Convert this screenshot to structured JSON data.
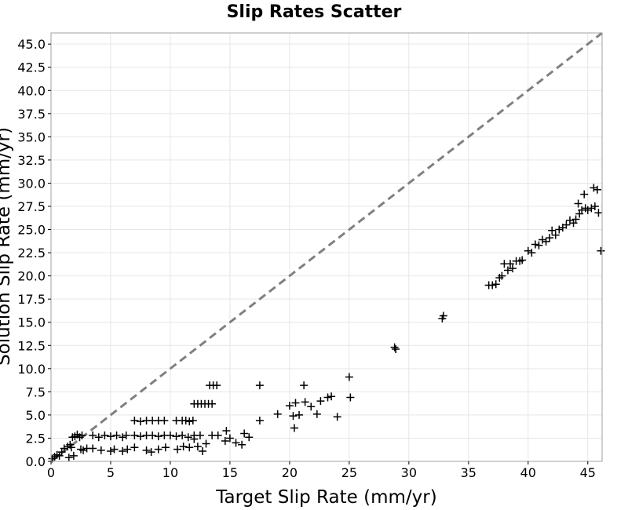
{
  "chart_data": {
    "type": "scatter",
    "title": "Slip Rates Scatter",
    "xlabel": "Target Slip Rate (mm/yr)",
    "ylabel": "Solution Slip Rate (mm/yr)",
    "xlim": [
      0,
      46.2
    ],
    "ylim": [
      0,
      46.2
    ],
    "x_ticks": [
      0,
      5,
      10,
      15,
      20,
      25,
      30,
      35,
      40,
      45
    ],
    "y_ticks": [
      0.0,
      2.5,
      5.0,
      7.5,
      10.0,
      12.5,
      15.0,
      17.5,
      20.0,
      22.5,
      25.0,
      27.5,
      30.0,
      32.5,
      35.0,
      37.5,
      40.0,
      42.5,
      45.0
    ],
    "marker": "plus",
    "grid": true,
    "reference_line": "y = x",
    "colors": {
      "points": "#000000",
      "reference_line": "#808080",
      "grid": "#e6e6e6"
    },
    "series": [
      {
        "points": [
          [
            0.1,
            0.3
          ],
          [
            0.3,
            0.5
          ],
          [
            0.5,
            0.7
          ],
          [
            0.7,
            0.6
          ],
          [
            0.9,
            1.0
          ],
          [
            1.1,
            1.4
          ],
          [
            1.4,
            1.6
          ],
          [
            1.6,
            1.8
          ],
          [
            1.7,
            1.5
          ],
          [
            1.8,
            2.6
          ],
          [
            2.0,
            2.7
          ],
          [
            2.2,
            2.9
          ],
          [
            2.4,
            2.6
          ],
          [
            2.6,
            2.8
          ],
          [
            1.5,
            0.4
          ],
          [
            1.9,
            0.6
          ],
          [
            2.5,
            1.3
          ],
          [
            3.0,
            1.4
          ],
          [
            2.7,
            1.2
          ],
          [
            3.5,
            2.8
          ],
          [
            4.0,
            2.6
          ],
          [
            4.5,
            2.8
          ],
          [
            5.0,
            2.7
          ],
          [
            5.5,
            2.8
          ],
          [
            6.0,
            2.6
          ],
          [
            6.3,
            2.8
          ],
          [
            7.0,
            2.8
          ],
          [
            7.5,
            2.7
          ],
          [
            8.0,
            2.8
          ],
          [
            8.5,
            2.8
          ],
          [
            9.0,
            2.7
          ],
          [
            9.5,
            2.8
          ],
          [
            10.0,
            2.8
          ],
          [
            10.5,
            2.7
          ],
          [
            11.0,
            2.8
          ],
          [
            11.5,
            2.6
          ],
          [
            12.0,
            2.8
          ],
          [
            12.5,
            2.8
          ],
          [
            13.5,
            2.8
          ],
          [
            7.0,
            4.4
          ],
          [
            7.5,
            4.3
          ],
          [
            8.0,
            4.4
          ],
          [
            8.5,
            4.4
          ],
          [
            9.0,
            4.4
          ],
          [
            9.5,
            4.4
          ],
          [
            10.5,
            4.4
          ],
          [
            11.0,
            4.4
          ],
          [
            11.3,
            4.4
          ],
          [
            11.6,
            4.3
          ],
          [
            11.9,
            4.4
          ],
          [
            3.5,
            1.4
          ],
          [
            4.2,
            1.2
          ],
          [
            5.0,
            1.1
          ],
          [
            5.3,
            1.3
          ],
          [
            6.0,
            1.1
          ],
          [
            6.4,
            1.3
          ],
          [
            7.0,
            1.5
          ],
          [
            8.0,
            1.2
          ],
          [
            8.4,
            1.0
          ],
          [
            9.0,
            1.3
          ],
          [
            9.6,
            1.5
          ],
          [
            10.6,
            1.3
          ],
          [
            11.1,
            1.6
          ],
          [
            11.6,
            1.5
          ],
          [
            12.0,
            2.4
          ],
          [
            12.3,
            1.6
          ],
          [
            12.7,
            1.1
          ],
          [
            13.0,
            1.9
          ],
          [
            14.0,
            2.8
          ],
          [
            14.6,
            2.2
          ],
          [
            14.7,
            3.3
          ],
          [
            15.0,
            2.5
          ],
          [
            15.5,
            2.0
          ],
          [
            16.0,
            1.8
          ],
          [
            16.2,
            3.0
          ],
          [
            16.6,
            2.6
          ],
          [
            17.5,
            4.4
          ],
          [
            12.0,
            6.2
          ],
          [
            12.3,
            6.2
          ],
          [
            12.6,
            6.2
          ],
          [
            12.9,
            6.2
          ],
          [
            13.2,
            6.2
          ],
          [
            13.5,
            6.2
          ],
          [
            13.3,
            8.2
          ],
          [
            13.6,
            8.2
          ],
          [
            13.9,
            8.2
          ],
          [
            17.5,
            8.2
          ],
          [
            21.2,
            8.2
          ],
          [
            19.0,
            5.1
          ],
          [
            20.0,
            6.0
          ],
          [
            20.3,
            4.9
          ],
          [
            20.5,
            6.3
          ],
          [
            20.8,
            5.0
          ],
          [
            20.4,
            3.6
          ],
          [
            21.3,
            6.4
          ],
          [
            21.8,
            5.9
          ],
          [
            22.3,
            5.1
          ],
          [
            22.6,
            6.5
          ],
          [
            23.2,
            6.9
          ],
          [
            23.5,
            7.0
          ],
          [
            24.0,
            4.8
          ],
          [
            25.0,
            9.1
          ],
          [
            25.1,
            6.9
          ],
          [
            28.9,
            12.1
          ],
          [
            28.8,
            12.3
          ],
          [
            32.8,
            15.4
          ],
          [
            32.9,
            15.7
          ],
          [
            36.7,
            19.0
          ],
          [
            37.0,
            19.0
          ],
          [
            37.3,
            19.1
          ],
          [
            37.6,
            19.8
          ],
          [
            37.8,
            20.0
          ],
          [
            38.0,
            21.3
          ],
          [
            38.3,
            20.6
          ],
          [
            38.5,
            21.3
          ],
          [
            38.7,
            20.8
          ],
          [
            39.0,
            21.6
          ],
          [
            39.3,
            21.6
          ],
          [
            39.5,
            21.7
          ],
          [
            40.0,
            22.7
          ],
          [
            40.3,
            22.5
          ],
          [
            40.6,
            23.4
          ],
          [
            40.9,
            23.3
          ],
          [
            41.2,
            23.9
          ],
          [
            41.5,
            23.7
          ],
          [
            41.8,
            24.1
          ],
          [
            42.0,
            24.9
          ],
          [
            42.3,
            24.4
          ],
          [
            42.6,
            25.0
          ],
          [
            42.9,
            25.2
          ],
          [
            43.2,
            25.5
          ],
          [
            43.5,
            26.0
          ],
          [
            43.8,
            25.7
          ],
          [
            44.0,
            26.1
          ],
          [
            44.3,
            26.7
          ],
          [
            44.5,
            27.1
          ],
          [
            44.8,
            27.3
          ],
          [
            45.0,
            27.1
          ],
          [
            45.3,
            27.3
          ],
          [
            45.5,
            29.5
          ],
          [
            45.8,
            29.3
          ],
          [
            45.9,
            26.8
          ],
          [
            46.1,
            22.7
          ],
          [
            44.2,
            27.8
          ],
          [
            44.7,
            28.8
          ],
          [
            45.6,
            27.5
          ]
        ]
      }
    ]
  }
}
